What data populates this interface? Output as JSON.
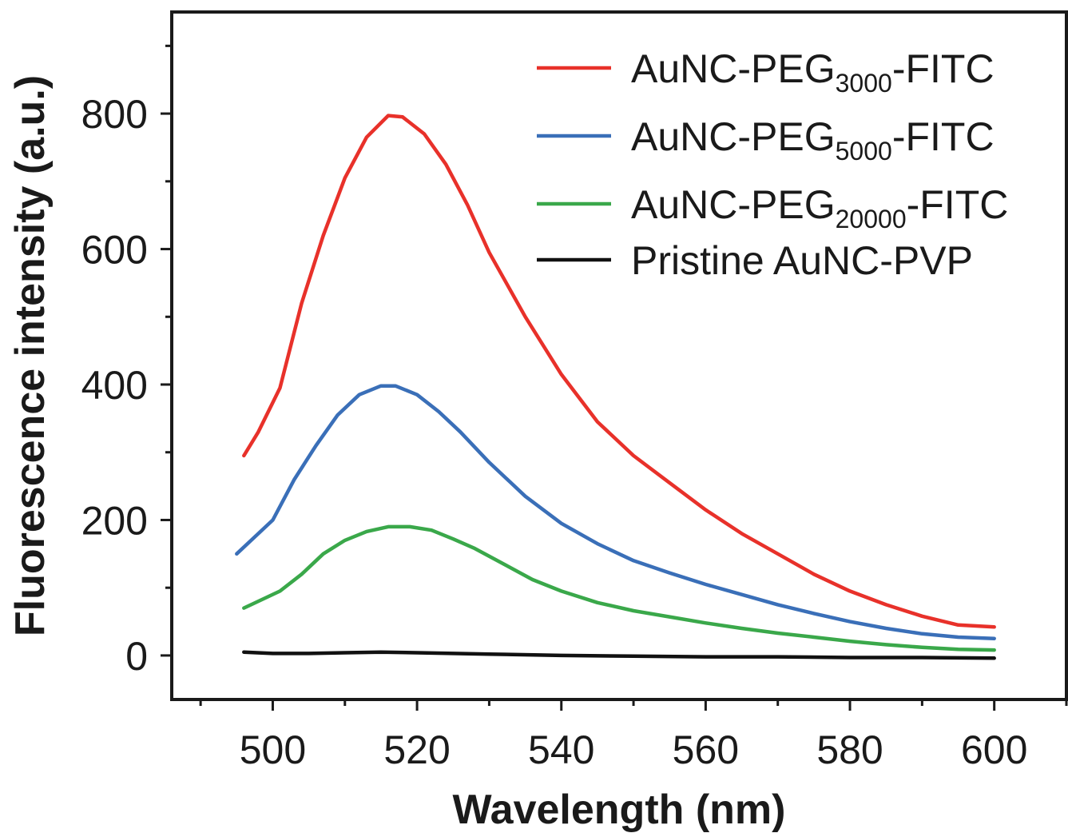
{
  "chart_data": {
    "type": "line",
    "title": "",
    "xlabel": "Wavelength (nm)",
    "ylabel": "Fluorescence intensity (a.u.)",
    "xlim": [
      486,
      610
    ],
    "ylim": [
      -65,
      950
    ],
    "xticks": [
      500,
      520,
      540,
      560,
      580,
      600
    ],
    "xtick_labels": [
      "500",
      "520",
      "540",
      "560",
      "580",
      "600"
    ],
    "yticks": [
      0,
      200,
      400,
      600,
      800
    ],
    "ytick_labels": [
      "0",
      "200",
      "400",
      "600",
      "800"
    ],
    "grid": false,
    "legend_position": "top-right",
    "series": [
      {
        "name": "AuNC-PEG3000-FITC",
        "label_main": "AuNC-PEG",
        "label_sub": "3000",
        "label_suffix": "-FITC",
        "color": "#e8312a",
        "x": [
          496,
          498,
          501,
          504,
          507,
          510,
          513,
          516,
          518,
          521,
          524,
          527,
          530,
          535,
          540,
          545,
          550,
          555,
          560,
          565,
          570,
          575,
          580,
          585,
          590,
          595,
          600
        ],
        "y": [
          295,
          330,
          395,
          520,
          620,
          705,
          765,
          797,
          795,
          770,
          725,
          665,
          595,
          500,
          415,
          345,
          295,
          255,
          215,
          180,
          150,
          120,
          95,
          75,
          58,
          45,
          42
        ]
      },
      {
        "name": "AuNC-PEG5000-FITC",
        "label_main": "AuNC-PEG",
        "label_sub": "5000",
        "label_suffix": "-FITC",
        "color": "#3a6fb8",
        "x": [
          495,
          497,
          500,
          503,
          506,
          509,
          512,
          515,
          517,
          520,
          523,
          526,
          530,
          535,
          540,
          545,
          550,
          555,
          560,
          565,
          570,
          575,
          580,
          585,
          590,
          595,
          600
        ],
        "y": [
          150,
          170,
          200,
          260,
          310,
          355,
          385,
          398,
          398,
          385,
          360,
          330,
          285,
          235,
          195,
          165,
          140,
          122,
          105,
          90,
          75,
          62,
          50,
          40,
          32,
          27,
          25
        ]
      },
      {
        "name": "AuNC-PEG20000-FITC",
        "label_main": "AuNC-PEG",
        "label_sub": "20000",
        "label_suffix": "-FITC",
        "color": "#3aa84a",
        "x": [
          496,
          498,
          501,
          504,
          507,
          510,
          513,
          516,
          519,
          522,
          525,
          528,
          532,
          536,
          540,
          545,
          550,
          555,
          560,
          565,
          570,
          575,
          580,
          585,
          590,
          595,
          600
        ],
        "y": [
          70,
          80,
          95,
          120,
          150,
          170,
          183,
          190,
          190,
          185,
          172,
          158,
          135,
          112,
          95,
          78,
          66,
          57,
          48,
          40,
          33,
          27,
          21,
          16,
          12,
          9,
          8
        ]
      },
      {
        "name": "Pristine AuNC-PVP",
        "label_main": "Pristine AuNC-PVP",
        "label_sub": "",
        "label_suffix": "",
        "color": "#111111",
        "x": [
          496,
          500,
          505,
          510,
          515,
          520,
          525,
          530,
          540,
          550,
          560,
          570,
          580,
          590,
          600
        ],
        "y": [
          5,
          3,
          3,
          4,
          5,
          4,
          3,
          2,
          0,
          -1,
          -2,
          -2,
          -3,
          -3,
          -4
        ]
      }
    ]
  }
}
